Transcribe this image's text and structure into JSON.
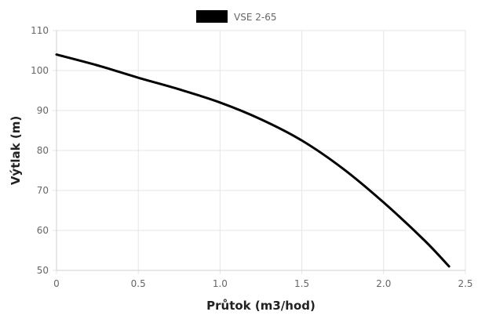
{
  "chart_data": {
    "type": "line",
    "title": "",
    "xlabel": "Průtok (m3/hod)",
    "ylabel": "Výtlak (m)",
    "xlim": [
      0,
      2.5
    ],
    "ylim": [
      50,
      110
    ],
    "xticks": [
      "0",
      "0.5",
      "1.0",
      "1.5",
      "2.0",
      "2.5"
    ],
    "yticks": [
      "50",
      "60",
      "70",
      "80",
      "90",
      "100",
      "110"
    ],
    "grid": true,
    "legend_position": "top-center",
    "series": [
      {
        "name": "VSE 2-65",
        "color": "#000000",
        "x": [
          0,
          0.25,
          0.5,
          0.75,
          1.0,
          1.25,
          1.5,
          1.75,
          2.0,
          2.25,
          2.4
        ],
        "y": [
          104,
          101.3,
          98.2,
          95.3,
          92,
          87.8,
          82.5,
          75.5,
          67,
          57.5,
          51
        ]
      }
    ]
  }
}
